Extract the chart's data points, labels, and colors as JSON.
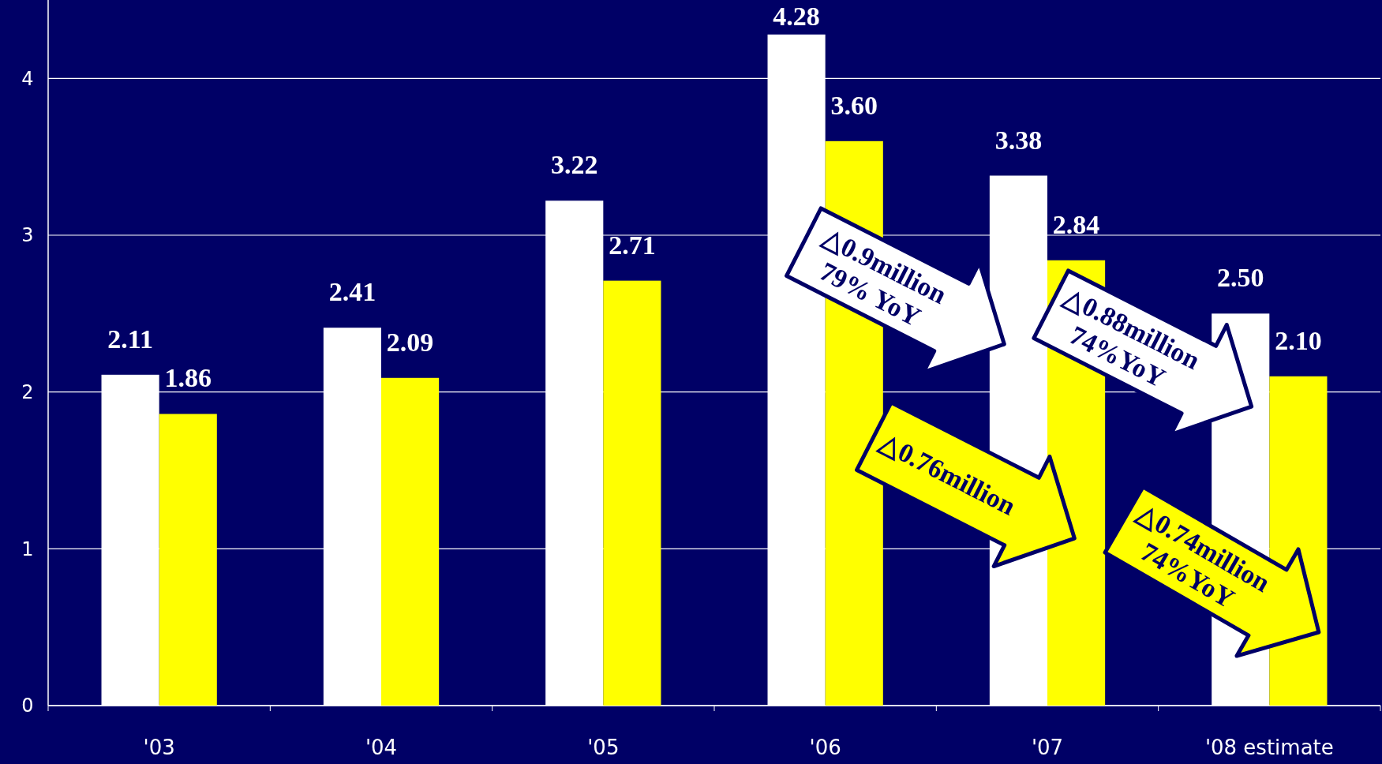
{
  "chart_data": {
    "type": "bar",
    "categories": [
      "'03",
      "'04",
      "'05",
      "'06",
      "'07",
      "'08 estimate"
    ],
    "series": [
      {
        "color": "#ffffff",
        "values": [
          2.11,
          2.41,
          3.22,
          4.28,
          3.38,
          2.5
        ],
        "value_labels": [
          "2.11",
          "2.41",
          "3.22",
          "4.28",
          "3.38",
          "2.50"
        ]
      },
      {
        "color": "#ffff00",
        "values": [
          1.86,
          2.09,
          2.71,
          3.6,
          2.84,
          2.1
        ],
        "value_labels": [
          "1.86",
          "2.09",
          "2.71",
          "3.60",
          "2.84",
          "2.10"
        ]
      }
    ],
    "ylim": [
      0,
      4.5
    ],
    "yticks": [
      0,
      1,
      2,
      3,
      4
    ],
    "grid": "y",
    "annotations": [
      "△0.9million 79% YoY",
      "△0.76million",
      "△0.88million 74%YoY",
      "△0.74million 74%YoY"
    ]
  }
}
